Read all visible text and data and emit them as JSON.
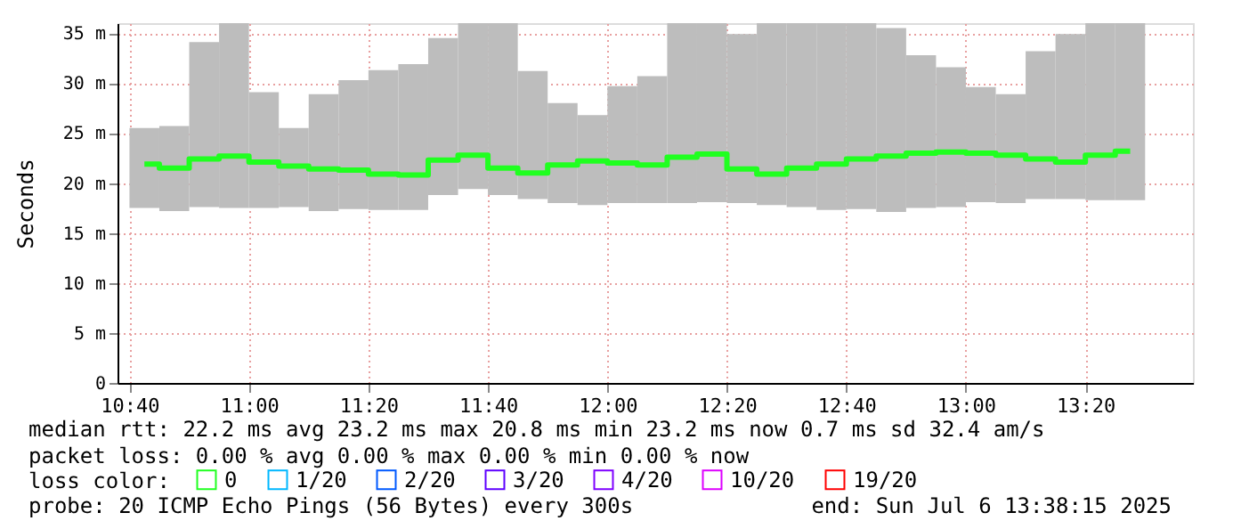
{
  "chart_data": {
    "type": "bar",
    "ylabel": "Seconds",
    "xlim": [
      "2025-07-06T10:38",
      "2025-07-06T13:38"
    ],
    "x": [
      "2025-07-06T10:42:30",
      "2025-07-06T10:47:30",
      "2025-07-06T10:52:30",
      "2025-07-06T10:57:30",
      "2025-07-06T11:02:30",
      "2025-07-06T11:07:30",
      "2025-07-06T11:12:30",
      "2025-07-06T11:17:30",
      "2025-07-06T11:22:30",
      "2025-07-06T11:27:30",
      "2025-07-06T11:32:30",
      "2025-07-06T11:37:30",
      "2025-07-06T11:42:30",
      "2025-07-06T11:47:30",
      "2025-07-06T11:52:30",
      "2025-07-06T11:57:30",
      "2025-07-06T12:02:30",
      "2025-07-06T12:07:30",
      "2025-07-06T12:12:30",
      "2025-07-06T12:17:30",
      "2025-07-06T12:22:30",
      "2025-07-06T12:27:30",
      "2025-07-06T12:32:30",
      "2025-07-06T12:37:30",
      "2025-07-06T12:42:30",
      "2025-07-06T12:47:30",
      "2025-07-06T12:52:30",
      "2025-07-06T12:57:30",
      "2025-07-06T13:02:30",
      "2025-07-06T13:07:30",
      "2025-07-06T13:12:30",
      "2025-07-06T13:17:30",
      "2025-07-06T13:22:30",
      "2025-07-06T13:27:30"
    ],
    "xticks": [
      {
        "value": "2025-07-06T10:40",
        "label": "10:40"
      },
      {
        "value": "2025-07-06T11:00",
        "label": "11:00"
      },
      {
        "value": "2025-07-06T11:20",
        "label": "11:20"
      },
      {
        "value": "2025-07-06T11:40",
        "label": "11:40"
      },
      {
        "value": "2025-07-06T12:00",
        "label": "12:00"
      },
      {
        "value": "2025-07-06T12:20",
        "label": "12:20"
      },
      {
        "value": "2025-07-06T12:40",
        "label": "12:40"
      },
      {
        "value": "2025-07-06T13:00",
        "label": "13:00"
      },
      {
        "value": "2025-07-06T13:20",
        "label": "13:20"
      }
    ],
    "ylim": [
      0,
      36
    ],
    "yticks": [
      0,
      {
        "value": 5,
        "label": "5 m"
      },
      {
        "value": 10,
        "label": "10 m"
      },
      {
        "value": 15,
        "label": "15 m"
      },
      {
        "value": 20,
        "label": "20 m"
      },
      {
        "value": 25,
        "label": "25 m"
      },
      {
        "value": 30,
        "label": "30 m"
      },
      {
        "value": 35,
        "label": "35 m"
      }
    ],
    "grid": true,
    "legend": "bottom left",
    "legend_title": "loss color:",
    "series": [
      {
        "color": "#bdbdbd",
        "base": [
          17.5,
          17.2,
          17.6,
          17.5,
          17.5,
          17.6,
          17.2,
          17.4,
          17.3,
          17.3,
          18.8,
          19.4,
          18.8,
          18.4,
          18.0,
          17.8,
          18.0,
          18.0,
          18.0,
          18.1,
          18.0,
          17.8,
          17.6,
          17.3,
          17.4,
          17.1,
          17.5,
          17.6,
          18.1,
          18.0,
          18.4,
          18.4,
          18.3,
          18.3
        ],
        "values": [
          8.0,
          8.5,
          16.5,
          18.5,
          11.6,
          7.9,
          11.7,
          12.9,
          14.0,
          14.6,
          15.7,
          16.6,
          17.2,
          12.8,
          10.0,
          9.0,
          11.7,
          12.7,
          18.0,
          17.9,
          16.9,
          18.2,
          18.4,
          18.7,
          18.6,
          18.4,
          15.3,
          14.0,
          11.5,
          10.9,
          14.8,
          16.5,
          17.7,
          17.7
        ]
      },
      {
        "type": "step",
        "name": "0",
        "color": "#20ff20",
        "values": [
          21.9,
          21.5,
          22.4,
          22.7,
          22.1,
          21.7,
          21.4,
          21.3,
          20.9,
          20.8,
          22.3,
          22.8,
          21.5,
          21.0,
          21.8,
          22.2,
          22.0,
          21.8,
          22.6,
          22.9,
          21.4,
          20.9,
          21.5,
          21.9,
          22.4,
          22.7,
          23.0,
          23.1,
          23.0,
          22.8,
          22.4,
          22.1,
          22.8,
          23.2
        ]
      },
      {
        "type": "step",
        "name": "1/20",
        "color": "#00b8ff",
        "values": [
          null,
          null,
          null,
          null,
          null,
          null,
          null,
          null,
          null,
          null,
          null,
          null,
          null,
          null,
          null,
          null,
          null,
          null,
          null,
          null,
          null,
          null,
          null,
          null,
          null,
          null,
          null,
          null,
          null,
          null,
          null,
          null,
          null,
          null
        ]
      },
      {
        "type": "step",
        "name": "2/20",
        "color": "#0059ff",
        "values": [
          null,
          null,
          null,
          null,
          null,
          null,
          null,
          null,
          null,
          null,
          null,
          null,
          null,
          null,
          null,
          null,
          null,
          null,
          null,
          null,
          null,
          null,
          null,
          null,
          null,
          null,
          null,
          null,
          null,
          null,
          null,
          null,
          null,
          null
        ]
      },
      {
        "type": "step",
        "name": "3/20",
        "color": "#5e00ff",
        "values": [
          null,
          null,
          null,
          null,
          null,
          null,
          null,
          null,
          null,
          null,
          null,
          null,
          null,
          null,
          null,
          null,
          null,
          null,
          null,
          null,
          null,
          null,
          null,
          null,
          null,
          null,
          null,
          null,
          null,
          null,
          null,
          null,
          null,
          null
        ]
      },
      {
        "type": "step",
        "name": "4/20",
        "color": "#7e00ff",
        "values": [
          null,
          null,
          null,
          null,
          null,
          null,
          null,
          null,
          null,
          null,
          null,
          null,
          null,
          null,
          null,
          null,
          null,
          null,
          null,
          null,
          null,
          null,
          null,
          null,
          null,
          null,
          null,
          null,
          null,
          null,
          null,
          null,
          null,
          null
        ]
      },
      {
        "type": "step",
        "name": "10/20",
        "color": "#dd00ff",
        "values": [
          null,
          null,
          null,
          null,
          null,
          null,
          null,
          null,
          null,
          null,
          null,
          null,
          null,
          null,
          null,
          null,
          null,
          null,
          null,
          null,
          null,
          null,
          null,
          null,
          null,
          null,
          null,
          null,
          null,
          null,
          null,
          null,
          null,
          null
        ]
      },
      {
        "type": "step",
        "name": "19/20",
        "color": "#ff0000",
        "values": [
          null,
          null,
          null,
          null,
          null,
          null,
          null,
          null,
          null,
          null,
          null,
          null,
          null,
          null,
          null,
          null,
          null,
          null,
          null,
          null,
          null,
          null,
          null,
          null,
          null,
          null,
          null,
          null,
          null,
          null,
          null,
          null,
          null,
          null
        ]
      }
    ],
    "annotations": [
      "median rtt:  22.2 ms avg  23.2 ms max  20.8 ms min  23.2 ms now  0.7 ms sd  32.4   am/s",
      "packet loss: 0.00 % avg  0.00 % max  0.00 % min  0.00 % now",
      "probe:       20 ICMP Echo Pings (56 Bytes) every 300s",
      "end: Sun Jul  6 13:38:15 2025"
    ]
  }
}
